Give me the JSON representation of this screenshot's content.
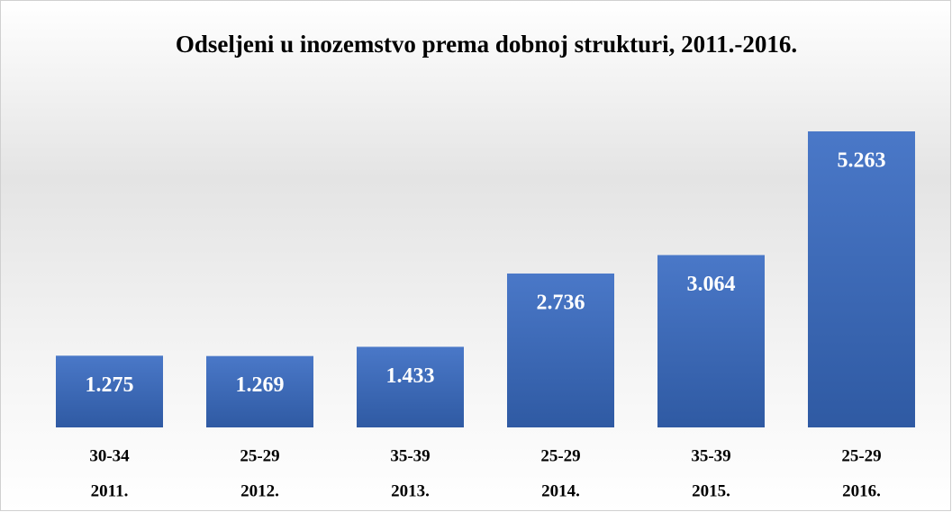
{
  "chart_data": {
    "type": "bar",
    "title": "Odseljeni u inozemstvo prema dobnoj strukturi, 2011.-2016.",
    "categories": [
      "2011.",
      "2012.",
      "2013.",
      "2014.",
      "2015.",
      "2016."
    ],
    "subcategories": [
      "30-34",
      "25-29",
      "35-39",
      "25-29",
      "35-39",
      "25-29"
    ],
    "values": [
      1275,
      1269,
      1433,
      2736,
      3064,
      5263
    ],
    "value_labels": [
      "1.275",
      "1.269",
      "1.433",
      "2.736",
      "3.064",
      "5.263"
    ],
    "color": "#4472c4"
  }
}
